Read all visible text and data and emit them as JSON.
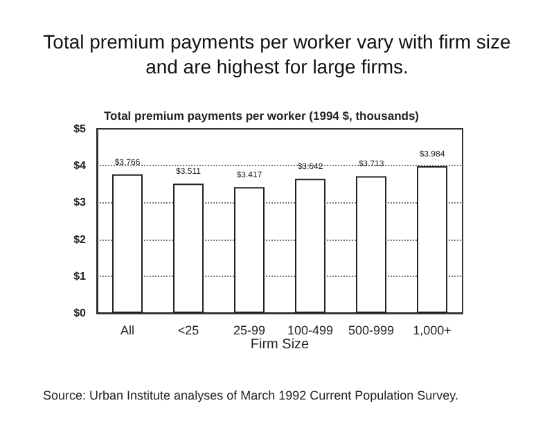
{
  "chart_data": {
    "type": "bar",
    "title": "Total premium payments per worker vary with firm size\nand are highest for large firms.",
    "subtitle": "Total premium payments per worker (1994 $, thousands)",
    "xlabel": "Firm Size",
    "categories": [
      "All",
      "<25",
      "25-99",
      "100-499",
      "500-999",
      "1,000+"
    ],
    "values": [
      3.766,
      3.511,
      3.417,
      3.642,
      3.713,
      3.984
    ],
    "value_labels": [
      "$3.766",
      "$3.511",
      "$3.417",
      "$3.642",
      "$3.713",
      "$3.984"
    ],
    "color": "#ffffff",
    "ylim": [
      0,
      5
    ],
    "yticks": [
      {
        "value": 0,
        "label": "$0"
      },
      {
        "value": 1,
        "label": "$1"
      },
      {
        "value": 2,
        "label": "$2"
      },
      {
        "value": 3,
        "label": "$3"
      },
      {
        "value": 4,
        "label": "$4"
      },
      {
        "value": 5,
        "label": "$5"
      }
    ],
    "grid": "y",
    "line_style": "dotted",
    "annotations": [
      "Source: Urban Institute analyses of March 1992 Current Population Survey."
    ]
  }
}
